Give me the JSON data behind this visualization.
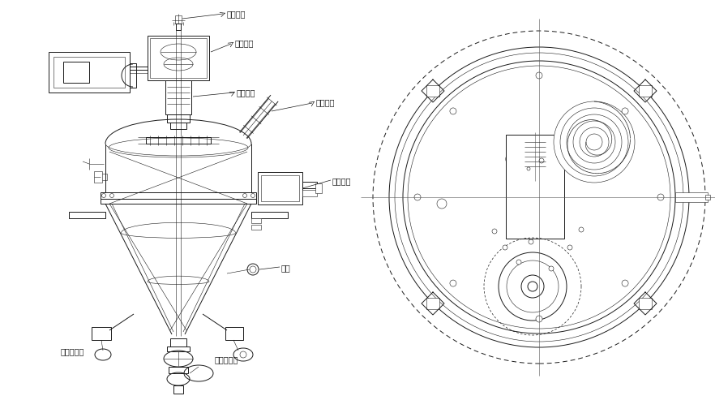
{
  "bg_color": "#ffffff",
  "line_color": "#1a1a1a",
  "lw": 0.7,
  "tlw": 0.4,
  "labels": {
    "xuanzhuan": "旋转接头",
    "chuandong": "传动结构",
    "zhenkong_fan": "真空反吹",
    "jixie_mifeng": "机械密封",
    "hunhe_jiaoba": "混合搅拌",
    "qi_chui": "气锤",
    "liawen_biansong": "料温变送器",
    "zhenkong_quyang": "真空取样器"
  },
  "fig_width": 8.82,
  "fig_height": 4.89,
  "dpi": 100
}
